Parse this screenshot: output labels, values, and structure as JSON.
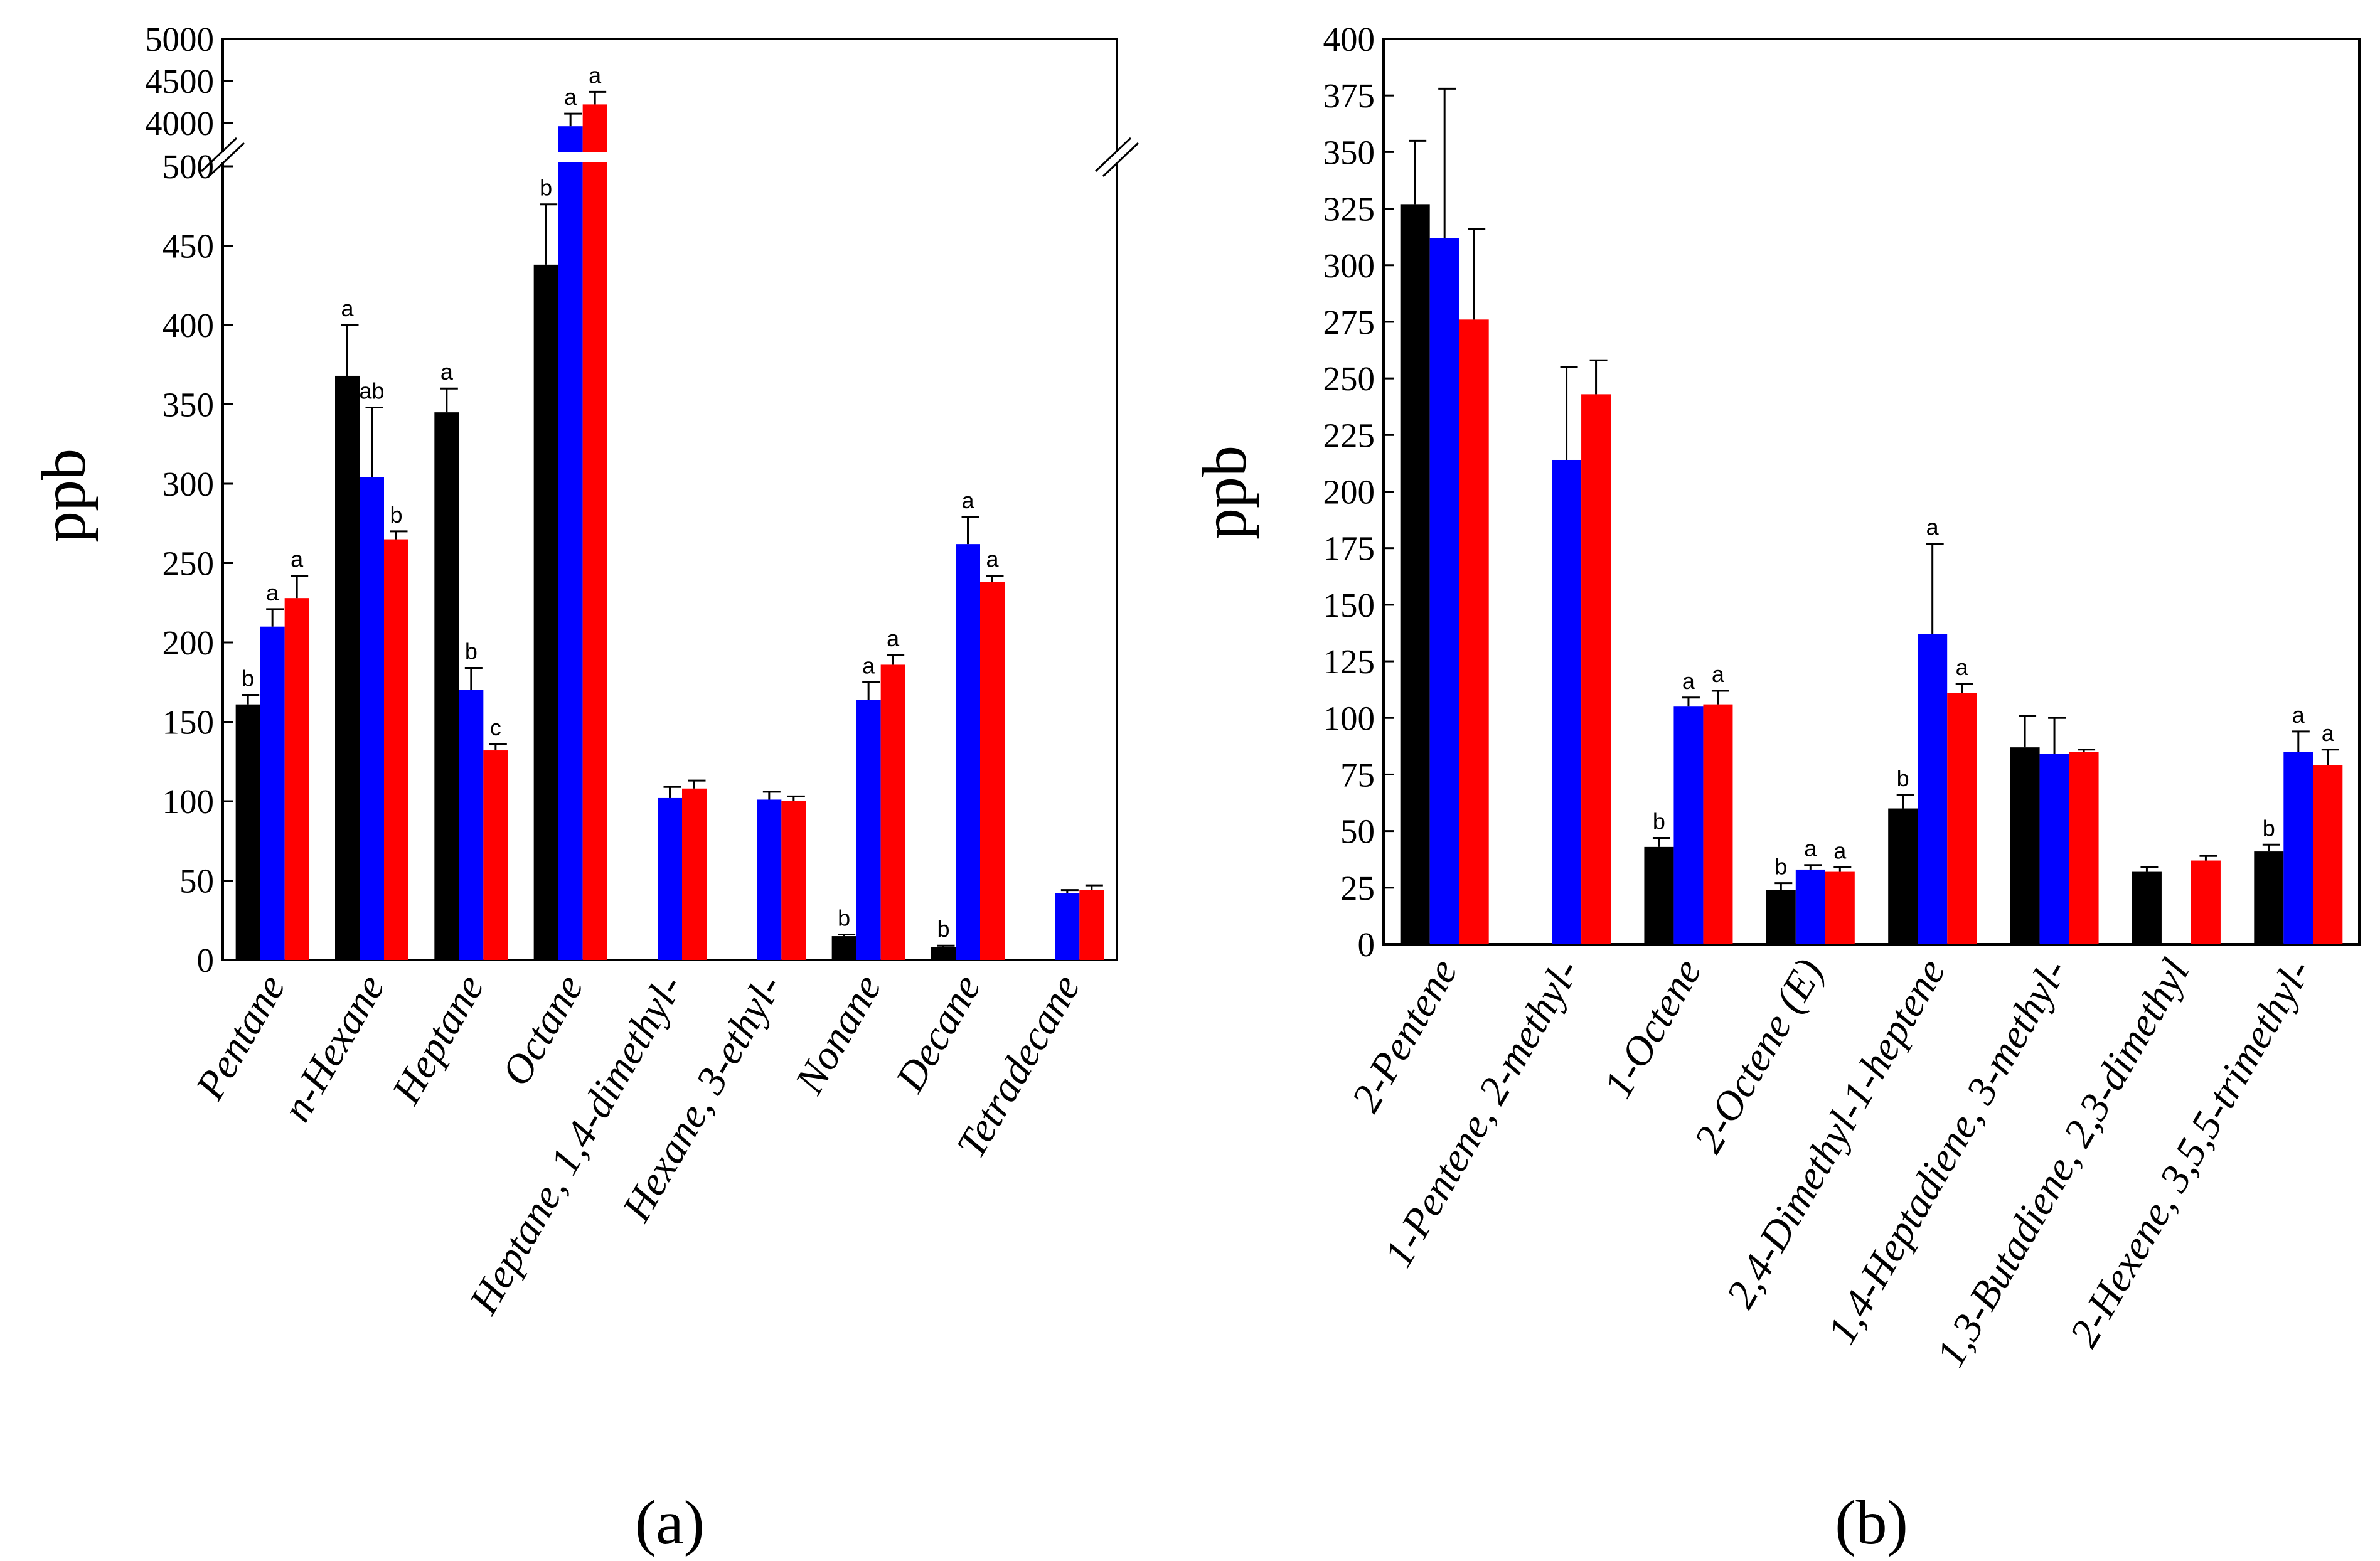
{
  "colors": {
    "series_black": "#000000",
    "series_blue": "#0000ff",
    "series_red": "#ff0000"
  },
  "chart_data": [
    {
      "type": "bar",
      "panel_label": "(a)",
      "ylabel": "ppb",
      "axis_break": true,
      "lower_ylim": [
        0,
        500
      ],
      "lower_yticks": [
        0,
        50,
        100,
        150,
        200,
        250,
        300,
        350,
        400,
        450,
        500
      ],
      "upper_ylim": [
        3700,
        5000
      ],
      "upper_yticks": [
        4000,
        4500,
        5000
      ],
      "grid": false,
      "categories": [
        "Pentane",
        "n-Hexane",
        "Heptane",
        "Octane",
        "Heptane, 1,4-dimethyl-",
        "Hexane, 3-ethyl-",
        "Nonane",
        "Decane",
        "Tetradecane"
      ],
      "series": [
        {
          "name": "black",
          "color": "#000000",
          "values": [
            161,
            368,
            345,
            438,
            null,
            null,
            15,
            8,
            null
          ],
          "errors": [
            6,
            32,
            15,
            38,
            null,
            null,
            1,
            1,
            null
          ],
          "letters": [
            "b",
            "a",
            "a",
            "b",
            "",
            "",
            "b",
            "b",
            ""
          ]
        },
        {
          "name": "blue",
          "color": "#0000ff",
          "values": [
            210,
            304,
            170,
            3960,
            102,
            101,
            164,
            262,
            42
          ],
          "errors": [
            11,
            44,
            14,
            150,
            7,
            5,
            11,
            17,
            2
          ],
          "letters": [
            "a",
            "ab",
            "b",
            "a",
            "",
            "",
            "a",
            "a",
            ""
          ]
        },
        {
          "name": "red",
          "color": "#ff0000",
          "values": [
            228,
            265,
            132,
            4220,
            108,
            100,
            186,
            238,
            44
          ],
          "errors": [
            14,
            5,
            4,
            150,
            5,
            3,
            6,
            4,
            3
          ],
          "letters": [
            "a",
            "b",
            "c",
            "a",
            "",
            "",
            "a",
            "a",
            ""
          ]
        }
      ]
    },
    {
      "type": "bar",
      "panel_label": "(b)",
      "ylabel": "ppb",
      "ylim": [
        0,
        400
      ],
      "yticks": [
        0,
        25,
        50,
        75,
        100,
        125,
        150,
        175,
        200,
        225,
        250,
        275,
        300,
        325,
        350,
        375,
        400
      ],
      "grid": false,
      "categories": [
        "2-Pentene",
        "1-Pentene, 2-methyl-",
        "1-Octene",
        "2-Octene (E)",
        "2,4-Dimethyl-1-heptene",
        "1,4-Heptadiene, 3-methyl-",
        "1,3-Butadiene, 2,3-dimethyl",
        "2-Hexene, 3,5,5-trimethyl-"
      ],
      "series": [
        {
          "name": "black",
          "color": "#000000",
          "values": [
            327,
            null,
            43,
            24,
            60,
            87,
            32,
            41
          ],
          "errors": [
            28,
            null,
            4,
            3,
            6,
            14,
            2,
            3
          ],
          "letters": [
            "",
            "",
            "b",
            "b",
            "b",
            "",
            "",
            "b"
          ]
        },
        {
          "name": "blue",
          "color": "#0000ff",
          "values": [
            312,
            214,
            105,
            33,
            137,
            84,
            null,
            85
          ],
          "errors": [
            66,
            41,
            4,
            2,
            40,
            16,
            null,
            9
          ],
          "letters": [
            "",
            "",
            "a",
            "a",
            "a",
            "",
            "",
            "a"
          ]
        },
        {
          "name": "red",
          "color": "#ff0000",
          "values": [
            276,
            243,
            106,
            32,
            111,
            85,
            37,
            79
          ],
          "errors": [
            40,
            15,
            6,
            2,
            4,
            1,
            2,
            7
          ],
          "letters": [
            "",
            "",
            "a",
            "a",
            "a",
            "",
            "",
            "a"
          ]
        }
      ]
    }
  ]
}
